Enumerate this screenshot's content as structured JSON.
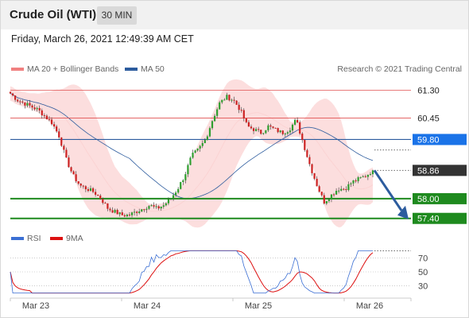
{
  "header": {
    "title": "Crude Oil (WTI)",
    "interval": "30 MIN"
  },
  "timestamp": "Friday, March 26, 2021 12:49:39 AM CET",
  "chart_data": [
    {
      "type": "candlestick",
      "legend": [
        {
          "name": "MA 20 + Bollinger Bands",
          "color": "#f08080"
        },
        {
          "name": "MA 50",
          "color": "#2d5c9e"
        }
      ],
      "credit": "Research © 2021 Trading Central",
      "x_labels": [
        "Mar 23",
        "Mar 24",
        "Mar 25",
        "Mar 26"
      ],
      "ylim": [
        57.2,
        61.6
      ],
      "levels": [
        {
          "value": 61.3,
          "label": "61.30",
          "kind": "resistance"
        },
        {
          "value": 60.45,
          "label": "60.45",
          "kind": "resistance"
        },
        {
          "value": 59.8,
          "label": "59.80",
          "kind": "ma50"
        },
        {
          "value": 58.86,
          "label": "58.86",
          "kind": "last"
        },
        {
          "value": 58.0,
          "label": "58.00",
          "kind": "support"
        },
        {
          "value": 57.4,
          "label": "57.40",
          "kind": "support"
        }
      ],
      "colors": {
        "up": "#2e9e2e",
        "down": "#cc2222",
        "resistance": "#e05050",
        "ma50": "#2d5c9e",
        "support": "#1e8a1e",
        "last": "#333333",
        "forecast": "#2d5c9e",
        "band": "#fbd3d3"
      },
      "forecast": {
        "from": 58.86,
        "to": 57.4
      },
      "close_path": [
        61.2,
        61.0,
        60.9,
        60.8,
        60.7,
        60.5,
        60.3,
        59.9,
        59.2,
        58.7,
        58.4,
        58.3,
        58.2,
        58.0,
        57.7,
        57.6,
        57.5,
        57.5,
        57.6,
        57.7,
        57.8,
        57.7,
        57.8,
        58.0,
        58.3,
        58.7,
        59.3,
        59.5,
        59.8,
        60.4,
        60.9,
        61.1,
        61.0,
        60.7,
        60.2,
        60.1,
        60.0,
        60.2,
        60.1,
        60.0,
        60.1,
        60.4,
        59.7,
        59.0,
        58.4,
        57.9,
        58.1,
        58.3,
        58.3,
        58.5,
        58.6,
        58.7,
        58.86
      ]
    },
    {
      "type": "line",
      "legend": [
        {
          "name": "RSI",
          "color": "#3b6fd4"
        },
        {
          "name": "9MA",
          "color": "#dd1111"
        }
      ],
      "y_ticks": [
        70,
        50,
        30
      ],
      "ylim": [
        15,
        85
      ]
    }
  ]
}
